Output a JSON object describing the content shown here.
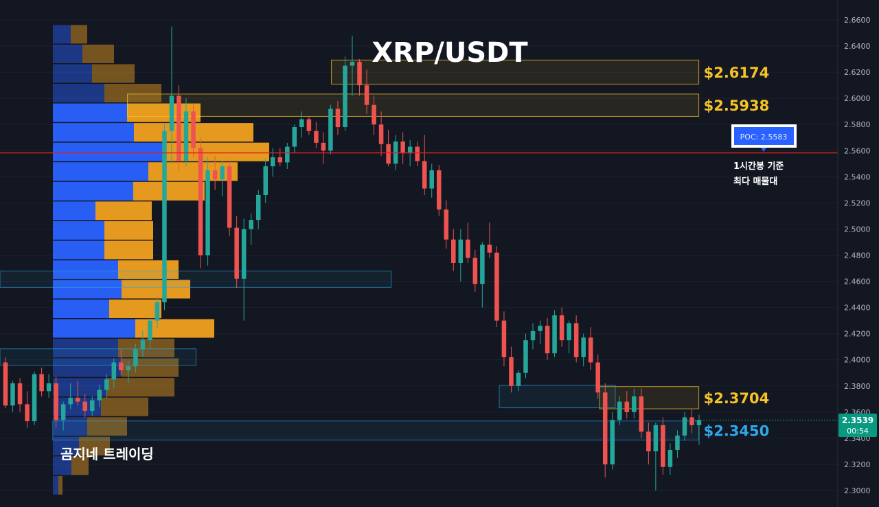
{
  "title": "XRP/USDT",
  "watermark": "곰지네 트레이딩",
  "poc": {
    "label": "POC: 2.5583",
    "value": 2.5583,
    "note_line1": "1시간봉 기준",
    "note_line2": "최다 매물대"
  },
  "current": {
    "price_label": "2.3539",
    "countdown": "00:54",
    "value": 2.3539
  },
  "colors": {
    "background": "#131722",
    "up": "#26a69a",
    "down": "#ef5350",
    "vp_buy": "#2962ff",
    "vp_sell": "#f0a020",
    "resistance": "#f7c325",
    "support": "#2da8e8",
    "poc_line": "#e01f1f"
  },
  "chart_data": {
    "type": "candlestick",
    "title": "XRP/USDT",
    "y_axis": {
      "min": 2.3,
      "max": 2.66,
      "ticks": [
        "2.3000",
        "2.3200",
        "2.3400",
        "2.3600",
        "2.3800",
        "2.4000",
        "2.4200",
        "2.4400",
        "2.4600",
        "2.4800",
        "2.5000",
        "2.5200",
        "2.5400",
        "2.5600",
        "2.5800",
        "2.6000",
        "2.6200",
        "2.6400",
        "2.6600"
      ]
    },
    "zones": [
      {
        "label": "$2.6174",
        "low": 2.6109,
        "high": 2.6293,
        "kind": "resistance",
        "price": 2.6174,
        "start": 0.377,
        "end": 0.795
      },
      {
        "label": "$2.5938",
        "low": 2.5862,
        "high": 2.6033,
        "kind": "resistance",
        "price": 2.5938,
        "start": 0.145,
        "end": 0.795
      },
      {
        "label": "$2.3704",
        "low": 2.3625,
        "high": 2.3795,
        "kind": "resistance",
        "price": 2.3704,
        "start": 0.682,
        "end": 0.795
      },
      {
        "label": "$2.3450",
        "low": 2.3386,
        "high": 2.3532,
        "kind": "support",
        "price": 2.345,
        "start": 0.06,
        "end": 0.795
      },
      {
        "label": "",
        "low": 2.4554,
        "high": 2.4679,
        "kind": "support",
        "price": 2.4615,
        "start": 0,
        "end": 0.445
      },
      {
        "label": "",
        "low": 2.3958,
        "high": 2.4084,
        "kind": "support",
        "price": 2.402,
        "start": 0,
        "end": 0.223
      },
      {
        "label": "",
        "low": 2.3633,
        "high": 2.3805,
        "kind": "support",
        "price": 2.372,
        "start": 0.568,
        "end": 0.7
      }
    ],
    "volume_profile": [
      {
        "price": 2.649,
        "buy": 26,
        "sell": 24
      },
      {
        "price": 2.634,
        "buy": 43,
        "sell": 46
      },
      {
        "price": 2.619,
        "buy": 57,
        "sell": 62
      },
      {
        "price": 2.604,
        "buy": 75,
        "sell": 83
      },
      {
        "price": 2.589,
        "buy": 108,
        "sell": 107
      },
      {
        "price": 2.574,
        "buy": 118,
        "sell": 174
      },
      {
        "price": 2.559,
        "buy": 163,
        "sell": 152
      },
      {
        "price": 2.544,
        "buy": 139,
        "sell": 130
      },
      {
        "price": 2.529,
        "buy": 117,
        "sell": 104
      },
      {
        "price": 2.514,
        "buy": 62,
        "sell": 82
      },
      {
        "price": 2.499,
        "buy": 75,
        "sell": 71
      },
      {
        "price": 2.484,
        "buy": 75,
        "sell": 71
      },
      {
        "price": 2.469,
        "buy": 95,
        "sell": 88
      },
      {
        "price": 2.454,
        "buy": 100,
        "sell": 100
      },
      {
        "price": 2.439,
        "buy": 82,
        "sell": 76
      },
      {
        "price": 2.424,
        "buy": 120,
        "sell": 115
      },
      {
        "price": 2.409,
        "buy": 95,
        "sell": 82
      },
      {
        "price": 2.394,
        "buy": 100,
        "sell": 83
      },
      {
        "price": 2.379,
        "buy": 78,
        "sell": 99
      },
      {
        "price": 2.364,
        "buy": 70,
        "sell": 69
      },
      {
        "price": 2.349,
        "buy": 50,
        "sell": 58
      },
      {
        "price": 2.334,
        "buy": 38,
        "sell": 45
      },
      {
        "price": 2.319,
        "buy": 27,
        "sell": 25
      },
      {
        "price": 2.304,
        "buy": 8,
        "sell": 6
      }
    ],
    "candles": [
      [
        2.398,
        2.402,
        2.363,
        2.365
      ],
      [
        2.365,
        2.384,
        2.36,
        2.382
      ],
      [
        2.382,
        2.386,
        2.36,
        2.366
      ],
      [
        2.366,
        2.376,
        2.348,
        2.353
      ],
      [
        2.353,
        2.391,
        2.35,
        2.389
      ],
      [
        2.389,
        2.394,
        2.372,
        2.376
      ],
      [
        2.376,
        2.389,
        2.371,
        2.382
      ],
      [
        2.382,
        2.387,
        2.348,
        2.354
      ],
      [
        2.354,
        2.368,
        2.346,
        2.366
      ],
      [
        2.366,
        2.382,
        2.362,
        2.371
      ],
      [
        2.371,
        2.384,
        2.365,
        2.368
      ],
      [
        2.368,
        2.374,
        2.356,
        2.361
      ],
      [
        2.361,
        2.372,
        2.357,
        2.369
      ],
      [
        2.369,
        2.381,
        2.364,
        2.377
      ],
      [
        2.377,
        2.389,
        2.37,
        2.385
      ],
      [
        2.385,
        2.401,
        2.378,
        2.398
      ],
      [
        2.398,
        2.408,
        2.388,
        2.392
      ],
      [
        2.392,
        2.399,
        2.382,
        2.395
      ],
      [
        2.395,
        2.412,
        2.39,
        2.408
      ],
      [
        2.408,
        2.422,
        2.402,
        2.415
      ],
      [
        2.415,
        2.432,
        2.408,
        2.43
      ],
      [
        2.43,
        2.448,
        2.424,
        2.444
      ],
      [
        2.444,
        2.58,
        2.438,
        2.575
      ],
      [
        2.575,
        2.655,
        2.55,
        2.602
      ],
      [
        2.602,
        2.61,
        2.545,
        2.552
      ],
      [
        2.552,
        2.6,
        2.548,
        2.59
      ],
      [
        2.59,
        2.596,
        2.555,
        2.562
      ],
      [
        2.562,
        2.57,
        2.47,
        2.48
      ],
      [
        2.48,
        2.555,
        2.472,
        2.545
      ],
      [
        2.545,
        2.556,
        2.53,
        2.538
      ],
      [
        2.538,
        2.552,
        2.525,
        2.548
      ],
      [
        2.548,
        2.553,
        2.495,
        2.501
      ],
      [
        2.501,
        2.51,
        2.455,
        2.462
      ],
      [
        2.462,
        2.508,
        2.43,
        2.5
      ],
      [
        2.5,
        2.512,
        2.488,
        2.507
      ],
      [
        2.507,
        2.53,
        2.5,
        2.526
      ],
      [
        2.526,
        2.554,
        2.52,
        2.548
      ],
      [
        2.548,
        2.562,
        2.54,
        2.555
      ],
      [
        2.555,
        2.562,
        2.548,
        2.551
      ],
      [
        2.551,
        2.566,
        2.546,
        2.563
      ],
      [
        2.563,
        2.58,
        2.558,
        2.578
      ],
      [
        2.578,
        2.59,
        2.57,
        2.584
      ],
      [
        2.584,
        2.586,
        2.572,
        2.575
      ],
      [
        2.575,
        2.582,
        2.562,
        2.566
      ],
      [
        2.566,
        2.574,
        2.55,
        2.56
      ],
      [
        2.56,
        2.595,
        2.557,
        2.592
      ],
      [
        2.592,
        2.598,
        2.572,
        2.578
      ],
      [
        2.578,
        2.632,
        2.575,
        2.625
      ],
      [
        2.625,
        2.648,
        2.602,
        2.628
      ],
      [
        2.628,
        2.63,
        2.602,
        2.61
      ],
      [
        2.61,
        2.622,
        2.588,
        2.595
      ],
      [
        2.595,
        2.602,
        2.572,
        2.58
      ],
      [
        2.58,
        2.59,
        2.556,
        2.565
      ],
      [
        2.565,
        2.576,
        2.548,
        2.55
      ],
      [
        2.55,
        2.572,
        2.545,
        2.567
      ],
      [
        2.567,
        2.574,
        2.55,
        2.558
      ],
      [
        2.558,
        2.568,
        2.548,
        2.563
      ],
      [
        2.563,
        2.567,
        2.548,
        2.552
      ],
      [
        2.552,
        2.572,
        2.526,
        2.531
      ],
      [
        2.531,
        2.55,
        2.524,
        2.545
      ],
      [
        2.545,
        2.549,
        2.51,
        2.515
      ],
      [
        2.515,
        2.522,
        2.485,
        2.492
      ],
      [
        2.492,
        2.5,
        2.468,
        2.474
      ],
      [
        2.474,
        2.5,
        2.46,
        2.492
      ],
      [
        2.492,
        2.505,
        2.474,
        2.478
      ],
      [
        2.478,
        2.484,
        2.452,
        2.458
      ],
      [
        2.458,
        2.49,
        2.44,
        2.488
      ],
      [
        2.488,
        2.505,
        2.478,
        2.482
      ],
      [
        2.482,
        2.487,
        2.425,
        2.43
      ],
      [
        2.43,
        2.437,
        2.395,
        2.402
      ],
      [
        2.402,
        2.41,
        2.375,
        2.38
      ],
      [
        2.38,
        2.392,
        2.376,
        2.39
      ],
      [
        2.39,
        2.42,
        2.386,
        2.415
      ],
      [
        2.415,
        2.428,
        2.408,
        2.422
      ],
      [
        2.422,
        2.43,
        2.412,
        2.426
      ],
      [
        2.426,
        2.432,
        2.4,
        2.405
      ],
      [
        2.405,
        2.438,
        2.402,
        2.434
      ],
      [
        2.434,
        2.44,
        2.41,
        2.415
      ],
      [
        2.415,
        2.43,
        2.405,
        2.428
      ],
      [
        2.428,
        2.434,
        2.398,
        2.402
      ],
      [
        2.402,
        2.42,
        2.395,
        2.417
      ],
      [
        2.417,
        2.425,
        2.392,
        2.398
      ],
      [
        2.398,
        2.404,
        2.37,
        2.375
      ],
      [
        2.375,
        2.382,
        2.31,
        2.32
      ],
      [
        2.32,
        2.36,
        2.316,
        2.354
      ],
      [
        2.354,
        2.372,
        2.35,
        2.368
      ],
      [
        2.368,
        2.376,
        2.355,
        2.36
      ],
      [
        2.36,
        2.378,
        2.355,
        2.372
      ],
      [
        2.372,
        2.378,
        2.34,
        2.345
      ],
      [
        2.345,
        2.352,
        2.32,
        2.33
      ],
      [
        2.33,
        2.352,
        2.3,
        2.35
      ],
      [
        2.35,
        2.356,
        2.312,
        2.318
      ],
      [
        2.318,
        2.336,
        2.312,
        2.331
      ],
      [
        2.331,
        2.346,
        2.325,
        2.342
      ],
      [
        2.342,
        2.36,
        2.338,
        2.356
      ],
      [
        2.356,
        2.362,
        2.344,
        2.35
      ],
      [
        2.35,
        2.358,
        2.335,
        2.3539
      ]
    ],
    "poc": 2.5583,
    "last_price": 2.3539
  }
}
